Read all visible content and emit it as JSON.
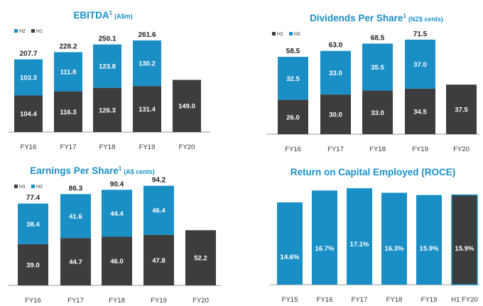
{
  "colors": {
    "h1": "#3d3d3d",
    "h2": "#1a8fc6",
    "axis": "#9a9a9a",
    "title": "#1a8fc6"
  },
  "chart_data": [
    {
      "id": "ebitda",
      "type": "bar",
      "stacked": true,
      "title": "EBITDA",
      "title_sup": "1",
      "title_unit": "(A$m)",
      "legend": [
        "H2",
        "H1"
      ],
      "legend_position": "top-left",
      "categories": [
        "FY16",
        "FY17",
        "FY18",
        "FY19",
        "FY20"
      ],
      "series": [
        {
          "name": "H1",
          "values": [
            104.4,
            116.3,
            126.3,
            131.4,
            149.0
          ],
          "labels": [
            "104.4",
            "116.3",
            "126.3",
            "131.4",
            "149.0"
          ]
        },
        {
          "name": "H2",
          "values": [
            103.3,
            111.8,
            123.8,
            130.2,
            null
          ],
          "labels": [
            "103.3",
            "111.8",
            "123.8",
            "130.2",
            ""
          ]
        }
      ],
      "totals": [
        "207.7",
        "228.2",
        "250.1",
        "261.6",
        ""
      ],
      "ylim": [
        0,
        300
      ]
    },
    {
      "id": "dps",
      "type": "bar",
      "stacked": true,
      "title": "Dividends Per Share",
      "title_sup": "1",
      "title_unit": "(NZ$ cents)",
      "legend": [
        "H1",
        "H2"
      ],
      "legend_position": "top-left",
      "categories": [
        "FY16",
        "FY17",
        "FY18",
        "FY19",
        "FY20"
      ],
      "series": [
        {
          "name": "H1",
          "values": [
            26.0,
            30.0,
            33.0,
            34.5,
            37.5
          ],
          "labels": [
            "26.0",
            "30.0",
            "33.0",
            "34.5",
            "37.5"
          ]
        },
        {
          "name": "H2",
          "values": [
            32.5,
            33.0,
            35.5,
            37.0,
            null
          ],
          "labels": [
            "32.5",
            "33.0",
            "35.5",
            "37.0",
            ""
          ]
        }
      ],
      "totals": [
        "58.5",
        "63.0",
        "68.5",
        "71.5",
        ""
      ],
      "ylim": [
        0,
        80
      ]
    },
    {
      "id": "eps",
      "type": "bar",
      "stacked": true,
      "title": "Earnings Per Share",
      "title_sup": "1",
      "title_unit": "(A$ cents)",
      "legend": [
        "H1",
        "H2"
      ],
      "legend_position": "top-left",
      "categories": [
        "FY16",
        "FY17",
        "FY18",
        "FY19",
        "FY20"
      ],
      "series": [
        {
          "name": "H1",
          "values": [
            39.0,
            44.7,
            46.0,
            47.8,
            52.2
          ],
          "labels": [
            "39.0",
            "44.7",
            "46.0",
            "47.8",
            "52.2"
          ]
        },
        {
          "name": "H2",
          "values": [
            38.4,
            41.6,
            44.4,
            46.4,
            null
          ],
          "labels": [
            "38.4",
            "41.6",
            "44.4",
            "46.4",
            ""
          ]
        }
      ],
      "totals": [
        "77.4",
        "86.3",
        "90.4",
        "94.2",
        ""
      ],
      "ylim": [
        0,
        100
      ]
    },
    {
      "id": "roce",
      "type": "bar",
      "stacked": false,
      "title": "Return on Capital Employed (ROCE)",
      "title_sup": "",
      "title_unit": "",
      "legend": [],
      "categories": [
        "FY15",
        "FY16",
        "FY17",
        "FY18",
        "FY19",
        "H1 FY20"
      ],
      "values": [
        14.6,
        16.7,
        17.1,
        16.3,
        15.9,
        15.9
      ],
      "labels": [
        "14.6%",
        "16.7%",
        "17.1%",
        "16.3%",
        "15.9%",
        "15.9%"
      ],
      "highlight_last": true,
      "ylim": [
        0,
        18
      ]
    }
  ]
}
